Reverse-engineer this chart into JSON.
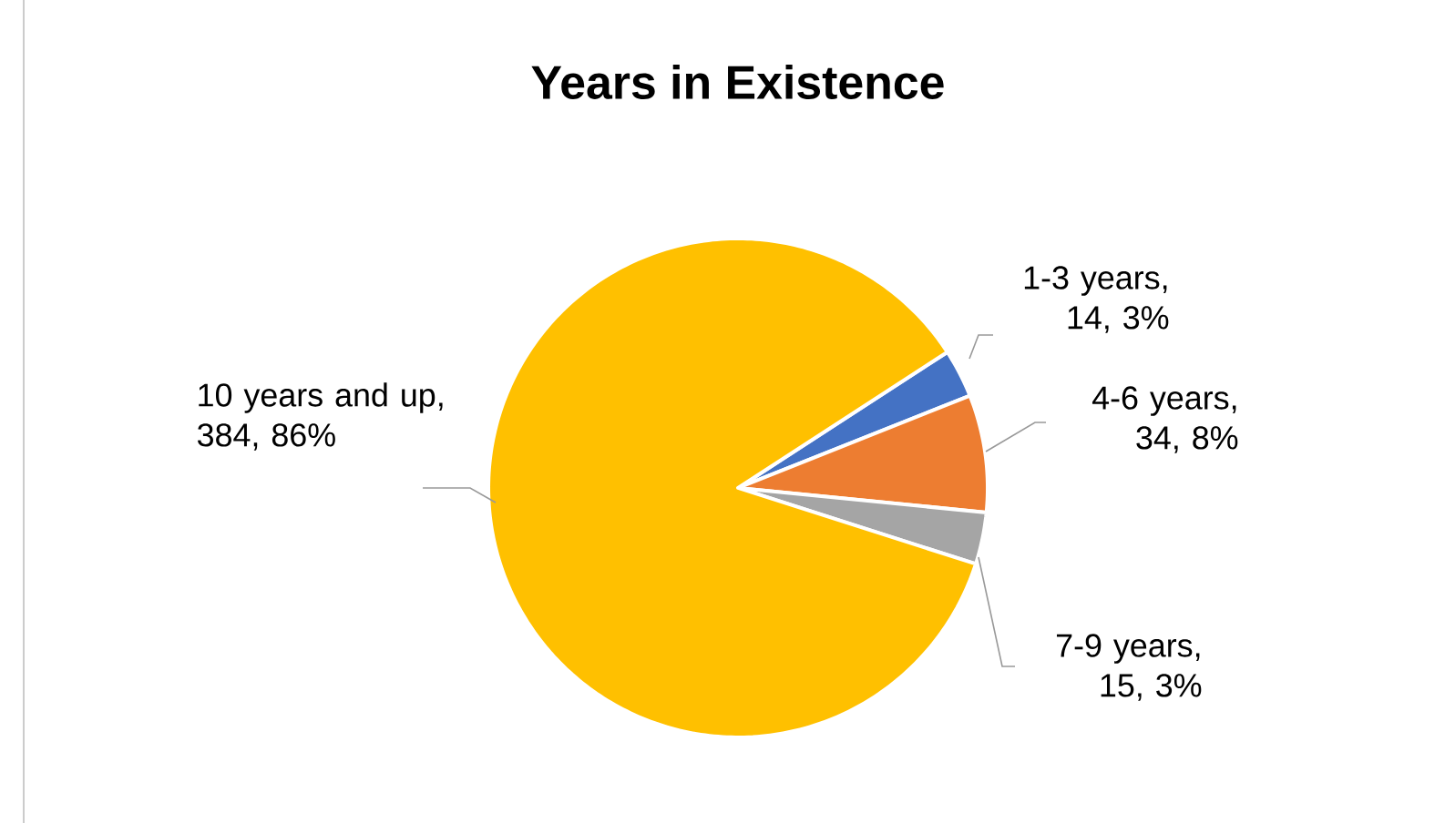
{
  "chart_data": {
    "type": "pie",
    "title": "Years in Existence",
    "categories": [
      "1-3 years",
      "4-6 years",
      "7-9 years",
      "10 years and up"
    ],
    "values": [
      14,
      34,
      15,
      384
    ],
    "value_labels": [
      ", 14, 3%",
      ", 34, 8%",
      ", 15, 3%",
      ", 384, 86%"
    ],
    "colors": [
      "#4472c4",
      "#ed7d31",
      "#a5a5a5",
      "#ffc000"
    ]
  }
}
